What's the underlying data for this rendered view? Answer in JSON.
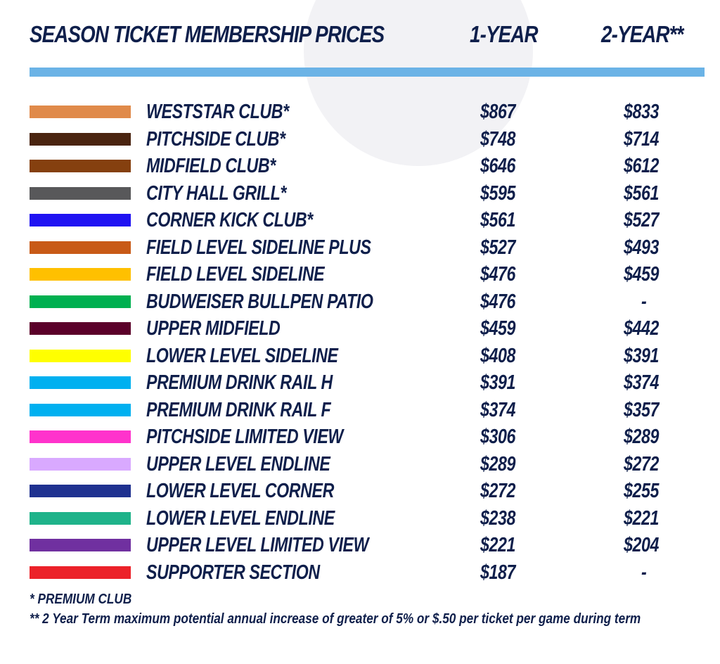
{
  "header": {
    "title": "SEASON TICKET MEMBERSHIP PRICES",
    "col_1year": "1-YEAR",
    "col_2year": "2-YEAR**"
  },
  "tiers": [
    {
      "name": "WESTSTAR CLUB*",
      "color": "#e08a4a",
      "price_1year": "$867",
      "price_2year": "$833"
    },
    {
      "name": "PITCHSIDE CLUB*",
      "color": "#4a2410",
      "price_1year": "$748",
      "price_2year": "$714"
    },
    {
      "name": "MIDFIELD CLUB*",
      "color": "#85400f",
      "price_1year": "$646",
      "price_2year": "$612"
    },
    {
      "name": "CITY HALL GRILL*",
      "color": "#58585a",
      "price_1year": "$595",
      "price_2year": "$561"
    },
    {
      "name": "CORNER KICK CLUB*",
      "color": "#1f12f2",
      "price_1year": "$561",
      "price_2year": "$527"
    },
    {
      "name": "FIELD LEVEL SIDELINE PLUS",
      "color": "#c85a17",
      "price_1year": "$527",
      "price_2year": "$493"
    },
    {
      "name": "FIELD LEVEL SIDELINE",
      "color": "#ffc000",
      "price_1year": "$476",
      "price_2year": "$459"
    },
    {
      "name": "BUDWEISER BULLPEN PATIO",
      "color": "#00b050",
      "price_1year": "$476",
      "price_2year": "-"
    },
    {
      "name": "UPPER MIDFIELD",
      "color": "#5b0029",
      "price_1year": "$459",
      "price_2year": "$442"
    },
    {
      "name": "LOWER LEVEL SIDELINE",
      "color": "#ffff00",
      "price_1year": "$408",
      "price_2year": "$391"
    },
    {
      "name": "PREMIUM DRINK RAIL H",
      "color": "#00b0f0",
      "price_1year": "$391",
      "price_2year": "$374"
    },
    {
      "name": "PREMIUM DRINK RAIL F",
      "color": "#00b0f0",
      "price_1year": "$374",
      "price_2year": "$357"
    },
    {
      "name": "PITCHSIDE LIMITED VIEW",
      "color": "#ff33cc",
      "price_1year": "$306",
      "price_2year": "$289"
    },
    {
      "name": "UPPER LEVEL ENDLINE",
      "color": "#d9a9ff",
      "price_1year": "$289",
      "price_2year": "$272"
    },
    {
      "name": "LOWER LEVEL CORNER",
      "color": "#1f3190",
      "price_1year": "$272",
      "price_2year": "$255"
    },
    {
      "name": "LOWER LEVEL ENDLINE",
      "color": "#1fb38a",
      "price_1year": "$238",
      "price_2year": "$221"
    },
    {
      "name": "UPPER LEVEL LIMITED VIEW",
      "color": "#7030a0",
      "price_1year": "$221",
      "price_2year": "$204"
    },
    {
      "name": "SUPPORTER SECTION",
      "color": "#ec2229",
      "price_1year": "$187",
      "price_2year": "-"
    }
  ],
  "footnotes": {
    "premium": "* PREMIUM CLUB",
    "two_year": "** 2 Year Term maximum potential annual increase of greater of 5% or $.50 per ticket per game during term"
  },
  "colors": {
    "text": "#0f1f4b",
    "header_rule": "#6bb3e6",
    "background_circle": "#f2f2f5"
  }
}
